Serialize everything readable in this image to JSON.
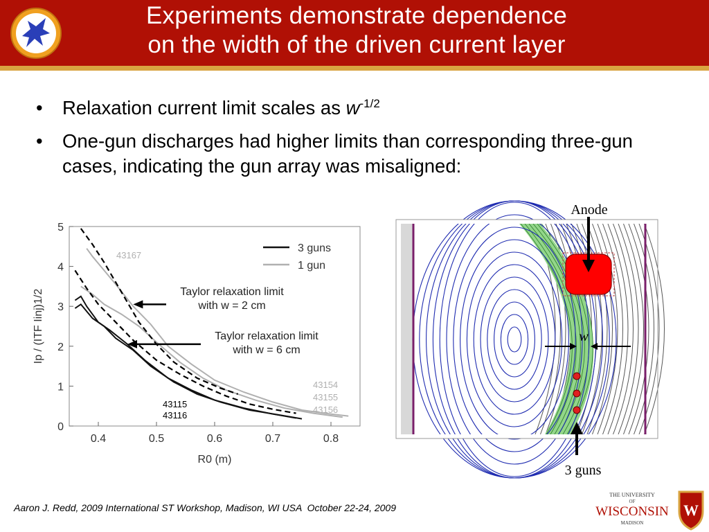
{
  "header": {
    "title_line1": "Experiments demonstrate dependence",
    "title_line2": "on the width of the driven current layer",
    "logo_icon": "pegasus-logo-icon",
    "colors": {
      "header_bg": "#b01005",
      "header_stripe": "#d9a441"
    }
  },
  "bullets": [
    {
      "prefix": "Relaxation current limit scales as ",
      "var": "w",
      "sup": "-1/2"
    },
    {
      "text": "One-gun discharges had higher limits than corresponding three-gun cases, indicating the gun array was misaligned:"
    }
  ],
  "chart_data": {
    "type": "line",
    "xlabel": "R0 (m)",
    "ylabel": "Ip / (ITF Iinj)1/2",
    "x_ticks": [
      "0.4",
      "0.5",
      "0.6",
      "0.7",
      "0.8"
    ],
    "y_ticks": [
      "0",
      "1",
      "2",
      "3",
      "4",
      "5"
    ],
    "xlim": [
      0.35,
      0.85
    ],
    "ylim": [
      0,
      5
    ],
    "legend": {
      "placement": "top-right",
      "entries": [
        "3 guns",
        "1 gun"
      ]
    },
    "series": [
      {
        "name": "3 guns",
        "color": "#111111",
        "x": [
          0.36,
          0.37,
          0.38,
          0.4,
          0.42,
          0.45,
          0.48,
          0.52,
          0.56,
          0.6,
          0.65,
          0.7,
          0.74
        ],
        "y": [
          3.15,
          3.25,
          3.0,
          2.6,
          2.4,
          2.05,
          1.65,
          1.2,
          0.9,
          0.65,
          0.45,
          0.3,
          0.2
        ]
      },
      {
        "name": "3 guns",
        "color": "#111111",
        "x": [
          0.36,
          0.37,
          0.39,
          0.41,
          0.43,
          0.46,
          0.49,
          0.53,
          0.57,
          0.61,
          0.66,
          0.71,
          0.75
        ],
        "y": [
          2.95,
          3.05,
          2.7,
          2.5,
          2.2,
          1.9,
          1.5,
          1.1,
          0.8,
          0.6,
          0.4,
          0.28,
          0.18
        ]
      },
      {
        "name": "1 gun",
        "color": "#b0b0b0",
        "x": [
          0.38,
          0.39,
          0.41,
          0.43,
          0.46,
          0.49,
          0.52,
          0.56,
          0.6,
          0.65,
          0.7,
          0.75,
          0.8,
          0.83
        ],
        "y": [
          4.45,
          4.25,
          3.9,
          3.55,
          3.0,
          2.55,
          2.0,
          1.55,
          1.15,
          0.85,
          0.6,
          0.4,
          0.3,
          0.25
        ]
      },
      {
        "name": "1 gun",
        "color": "#b0b0b0",
        "x": [
          0.37,
          0.39,
          0.41,
          0.44,
          0.47,
          0.5,
          0.54,
          0.58,
          0.62,
          0.67,
          0.72,
          0.77,
          0.82
        ],
        "y": [
          3.5,
          3.3,
          3.05,
          2.8,
          2.5,
          2.1,
          1.6,
          1.2,
          0.9,
          0.65,
          0.45,
          0.32,
          0.22
        ]
      },
      {
        "name": "Taylor relaxation limit with w = 2 cm",
        "color": "#000000",
        "dash": true,
        "x": [
          0.37,
          0.39,
          0.41,
          0.43,
          0.45,
          0.47,
          0.5,
          0.53,
          0.57,
          0.61,
          0.64
        ],
        "y": [
          4.95,
          4.55,
          4.1,
          3.6,
          3.1,
          2.6,
          2.05,
          1.6,
          1.2,
          0.95,
          0.8
        ]
      },
      {
        "name": "Taylor relaxation limit with w = 6 cm",
        "color": "#000000",
        "dash": true,
        "x": [
          0.36,
          0.38,
          0.4,
          0.43,
          0.46,
          0.5,
          0.54,
          0.58,
          0.62,
          0.66,
          0.7,
          0.74
        ],
        "y": [
          3.9,
          3.45,
          3.05,
          2.6,
          2.15,
          1.65,
          1.3,
          1.0,
          0.75,
          0.55,
          0.42,
          0.32
        ]
      }
    ],
    "annotations": [
      {
        "text_lines": [
          "Taylor relaxation limit",
          "with w = 2 cm"
        ],
        "arrow_to": [
          0.46,
          3.05
        ]
      },
      {
        "text_lines": [
          "Taylor relaxation limit",
          "with w = 6 cm"
        ],
        "arrow_to": [
          0.45,
          2.05
        ]
      },
      {
        "text_lines": [
          "43167"
        ],
        "color": "#b0b0b0"
      },
      {
        "text_lines": [
          "43154",
          "43155",
          "43156"
        ],
        "color": "#b0b0b0"
      },
      {
        "text_lines": [
          "43115",
          "43116"
        ],
        "color": "#000000"
      }
    ]
  },
  "diagram": {
    "label_anode": "Anode",
    "label_w": "w",
    "label_guns": "3 guns",
    "colors": {
      "blue_contours": "#1e2bb0",
      "green_band": "#93d68a",
      "anode": "#ff0000",
      "boundary": "#7a1f6a"
    }
  },
  "footer": {
    "author": "Aaron J. Redd, 2009 International ST Workshop, Madison, WI USA",
    "date": "October 22-24, 2009"
  },
  "uw_logo": {
    "line1": "THE UNIVERSITY",
    "line2": "OF",
    "line3": "WISCONSIN",
    "line4": "MADISON",
    "crest_letter": "W"
  }
}
